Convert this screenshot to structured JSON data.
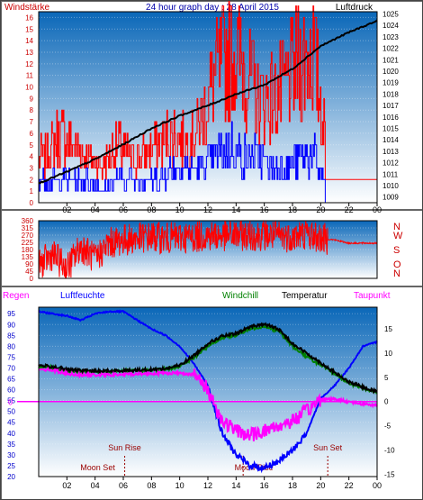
{
  "header": {
    "left_label": "Windstärke",
    "title": "24 hour graph day : 28 April 2015",
    "right_label": "Luftdruck"
  },
  "colors": {
    "wind_speed": "#ff0000",
    "wind_avg": "#0000ff",
    "pressure": "#000000",
    "wind_direction": "#ff0000",
    "humidity": "#0000ff",
    "windchill": "#008000",
    "temperature": "#000000",
    "dewpoint": "#ff00ff",
    "rain": "#ff00ff",
    "plot_bg_top": "#0a67b8",
    "plot_bg_bottom": "#ffffff"
  },
  "chart_data": [
    {
      "type": "bar",
      "x_ticks": [
        "02",
        "04",
        "06",
        "08",
        "10",
        "12",
        "14",
        "16",
        "18",
        "20",
        "22",
        "00"
      ],
      "left_axis": {
        "label": "Windstärke",
        "ticks": [
          0,
          1,
          2,
          3,
          4,
          5,
          6,
          7,
          8,
          9,
          10,
          11,
          12,
          13,
          14,
          15,
          16
        ],
        "ylim": [
          0,
          16.5
        ]
      },
      "right_axis": {
        "label": "Luftdruck",
        "ticks": [
          1009,
          1010,
          1011,
          1012,
          1013,
          1014,
          1015,
          1016,
          1017,
          1018,
          1019,
          1020,
          1021,
          1022,
          1023,
          1024,
          1025
        ],
        "ylim": [
          1008.5,
          1025.2
        ]
      },
      "series": [
        {
          "key": "gust",
          "x": [
            0.5,
            1.5,
            2.5,
            3.5,
            4.5,
            5.5,
            6.5,
            7.5,
            8.5,
            9.5,
            10.5,
            11.5,
            12.5,
            13.5,
            14.5,
            15.5,
            16.5,
            17.5,
            18.5,
            19.5,
            20.5,
            21.5,
            22.5,
            23.5
          ],
          "values": [
            4,
            6,
            5,
            4,
            3,
            5,
            4,
            4,
            5,
            6,
            5,
            7,
            11,
            13,
            12,
            9,
            9,
            10,
            12,
            13,
            4,
            2,
            2,
            2
          ]
        },
        {
          "key": "average",
          "x": [
            0.5,
            1.5,
            2.5,
            3.5,
            4.5,
            5.5,
            6.5,
            7.5,
            8.5,
            9.5,
            10.5,
            11.5,
            12.5,
            13.5,
            14.5,
            15.5,
            16.5,
            17.5,
            18.5,
            19.5,
            20.5,
            21.5,
            22.5,
            23.5
          ],
          "values": [
            2,
            2,
            2,
            2,
            1,
            2,
            2,
            2,
            2,
            3,
            3,
            3,
            4,
            5,
            4,
            4,
            3,
            3,
            4,
            4,
            1,
            0,
            0,
            0
          ]
        },
        {
          "key": "pressure",
          "x": [
            0,
            2,
            4,
            6,
            8,
            10,
            12,
            14,
            16,
            18,
            20,
            22,
            24
          ],
          "values": [
            1010.2,
            1011.2,
            1012.3,
            1013.6,
            1015.0,
            1016.1,
            1017.0,
            1018.0,
            1018.8,
            1020.2,
            1022.2,
            1023.4,
            1024.4
          ]
        }
      ]
    },
    {
      "type": "line",
      "x_ticks": [
        "02",
        "04",
        "06",
        "08",
        "10",
        "12",
        "14",
        "16",
        "18",
        "20",
        "22",
        "00"
      ],
      "left_axis": {
        "ticks": [
          0,
          45,
          90,
          135,
          180,
          225,
          270,
          315,
          360
        ],
        "ylim": [
          0,
          360
        ]
      },
      "right_labels": [
        "N",
        "W",
        "S",
        "O",
        "N"
      ],
      "series": [
        {
          "key": "wind_direction",
          "x": [
            0,
            1,
            2,
            3,
            4,
            5,
            6,
            7,
            8,
            9,
            10,
            11,
            12,
            13,
            14,
            15,
            16,
            17,
            18,
            19,
            20,
            21,
            22,
            23,
            24
          ],
          "values": [
            80,
            150,
            60,
            200,
            120,
            220,
            240,
            250,
            260,
            250,
            255,
            260,
            270,
            265,
            270,
            270,
            270,
            265,
            260,
            280,
            250,
            240,
            220,
            220,
            220
          ]
        }
      ]
    },
    {
      "type": "line",
      "x_ticks": [
        "02",
        "04",
        "06",
        "08",
        "10",
        "12",
        "14",
        "16",
        "18",
        "20",
        "22",
        "00"
      ],
      "left_axis": {
        "ticks": [
          20,
          25,
          30,
          35,
          40,
          45,
          50,
          55,
          60,
          65,
          70,
          75,
          80,
          85,
          90,
          95
        ],
        "ylim": [
          20,
          98
        ]
      },
      "right_axis": {
        "ticks": [
          -15,
          -10,
          -5,
          0,
          5,
          10,
          15
        ],
        "ylim": [
          -15.5,
          19.5
        ]
      },
      "rain_zero_label": "0",
      "series": [
        {
          "key": "humidity",
          "name": "Luftfeuchte",
          "x": [
            0,
            1,
            2,
            3,
            4,
            5,
            6,
            7,
            8,
            9,
            10,
            11,
            12,
            13,
            14,
            15,
            16,
            17,
            18,
            19,
            20,
            21,
            22,
            23,
            24
          ],
          "values": [
            96,
            95,
            94,
            92,
            95,
            96,
            96,
            92,
            88,
            85,
            80,
            72,
            62,
            40,
            30,
            25,
            24,
            27,
            32,
            40,
            56,
            62,
            70,
            80,
            82
          ]
        },
        {
          "key": "temperature",
          "name": "Temperatur",
          "x": [
            0,
            1,
            2,
            3,
            4,
            5,
            6,
            7,
            8,
            9,
            10,
            11,
            12,
            13,
            14,
            15,
            16,
            17,
            18,
            19,
            20,
            21,
            22,
            23,
            24
          ],
          "values": [
            7.5,
            7.2,
            6.6,
            6.4,
            6.3,
            6.3,
            6.4,
            6.5,
            6.6,
            6.8,
            7.5,
            9.5,
            12,
            13.5,
            14,
            15.5,
            16,
            15,
            12,
            10,
            8,
            6,
            4,
            3,
            2
          ]
        },
        {
          "key": "windchill",
          "name": "Windchill",
          "x": [
            0,
            1,
            2,
            3,
            4,
            5,
            6,
            7,
            8,
            9,
            10,
            11,
            12,
            13,
            14,
            15,
            16,
            17,
            18,
            19,
            20,
            21,
            22,
            23,
            24
          ],
          "values": [
            7.3,
            7.0,
            6.3,
            6.1,
            6.1,
            6.2,
            6.3,
            6.4,
            6.5,
            6.7,
            7.3,
            9.0,
            11.5,
            13.2,
            13.8,
            15,
            15.6,
            14.6,
            11.5,
            9.3,
            7.5,
            5.8,
            3.8,
            2.8,
            1.9
          ]
        },
        {
          "key": "dewpoint",
          "name": "Taupunkt",
          "x": [
            0,
            1,
            2,
            3,
            4,
            5,
            6,
            7,
            8,
            9,
            10,
            11,
            12,
            13,
            14,
            15,
            16,
            17,
            18,
            19,
            20,
            21,
            22,
            23,
            24
          ],
          "values": [
            6.8,
            6.5,
            5.8,
            5.5,
            5.5,
            5.5,
            5.6,
            5.7,
            5.8,
            5.9,
            5.9,
            5.6,
            2.5,
            -4,
            -6,
            -7,
            -6,
            -5,
            -4,
            -2,
            0.5,
            0.5,
            0,
            -0.5,
            -0.8
          ]
        },
        {
          "key": "rain",
          "name": "Regen",
          "x": [
            0,
            24
          ],
          "values": [
            0,
            0
          ]
        }
      ],
      "legend": [
        "Regen",
        "Luftfeuchte",
        "Windchill",
        "Temperatur",
        "Taupunkt"
      ],
      "annotations": [
        {
          "label": "Sun Rise",
          "x": 6.1
        },
        {
          "label": "Moon Set",
          "x": 6.1
        },
        {
          "label": "Moon Rise",
          "x": 14.5
        },
        {
          "label": "Sun Set",
          "x": 20.5
        }
      ]
    }
  ]
}
